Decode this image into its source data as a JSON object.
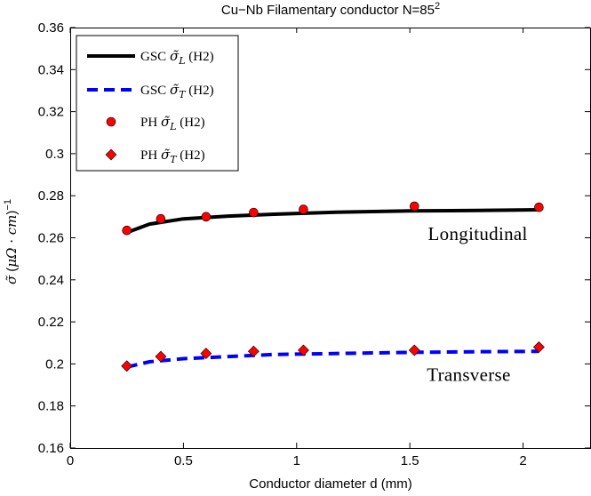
{
  "chart_data": {
    "type": "line",
    "title": {
      "prefix": "Cu−Nb Filamentary conductor N=85",
      "sup": "2"
    },
    "xlabel": "Conductor diameter d (mm)",
    "ylabel": {
      "sym": "σ̃",
      "open": "(",
      "mu": "μΩ · ",
      "cm": "cm",
      "close": ")",
      "sup": "−1"
    },
    "xlim": [
      0,
      2.3
    ],
    "ylim": [
      0.16,
      0.36
    ],
    "xticks": [
      0,
      0.5,
      1,
      1.5,
      2
    ],
    "xtick_labels": [
      "0",
      "0.5",
      "1",
      "1.5",
      "2"
    ],
    "yticks": [
      0.16,
      0.18,
      0.2,
      0.22,
      0.24,
      0.26,
      0.28,
      0.3,
      0.32,
      0.34,
      0.36
    ],
    "ytick_labels": [
      "0.16",
      "0.18",
      "0.2",
      "0.22",
      "0.24",
      "0.26",
      "0.28",
      "0.3",
      "0.32",
      "0.34",
      "0.36"
    ],
    "grid": false,
    "legend_position": "top-left",
    "series": [
      {
        "name": "GSC σ̃_L (H2)",
        "legend": {
          "pre": "GSC ",
          "sym": "σ̃",
          "sub": "L",
          "post": " (H2)"
        },
        "style": "solid-line",
        "color": "#000000",
        "x": [
          0.25,
          0.35,
          0.5,
          0.7,
          0.9,
          1.2,
          1.5,
          1.8,
          2.07
        ],
        "y": [
          0.2625,
          0.2665,
          0.269,
          0.2703,
          0.2712,
          0.2722,
          0.2728,
          0.273,
          0.2733
        ]
      },
      {
        "name": "GSC σ̃_T (H2)",
        "legend": {
          "pre": "GSC ",
          "sym": "σ̃",
          "sub": "T",
          "post": " (H2)"
        },
        "style": "dashed-line",
        "color": "#0000ff",
        "x": [
          0.25,
          0.35,
          0.5,
          0.7,
          0.9,
          1.2,
          1.5,
          1.8,
          2.07
        ],
        "y": [
          0.1985,
          0.201,
          0.2025,
          0.2035,
          0.2045,
          0.205,
          0.2055,
          0.2058,
          0.206
        ]
      },
      {
        "name": "PH σ̃_L (H2)",
        "legend": {
          "pre": "PH ",
          "sym": "σ̃",
          "sub": "L",
          "post": " (H2)"
        },
        "style": "circle-marker",
        "color": "#ff0000",
        "x": [
          0.25,
          0.4,
          0.6,
          0.81,
          1.03,
          1.52,
          2.07
        ],
        "y": [
          0.2635,
          0.269,
          0.27,
          0.272,
          0.2735,
          0.275,
          0.2745
        ]
      },
      {
        "name": "PH σ̃_T (H2)",
        "legend": {
          "pre": "PH ",
          "sym": "σ̃",
          "sub": "T",
          "post": " (H2)"
        },
        "style": "diamond-marker",
        "color": "#ff0000",
        "x": [
          0.25,
          0.4,
          0.6,
          0.81,
          1.03,
          1.52,
          2.07
        ],
        "y": [
          0.199,
          0.2035,
          0.205,
          0.206,
          0.2065,
          0.2065,
          0.208
        ]
      }
    ],
    "annotations": [
      {
        "text": "Longitudinal",
        "x": 1.8,
        "y": 0.259
      },
      {
        "text": "Transverse",
        "x": 1.76,
        "y": 0.192
      }
    ]
  }
}
